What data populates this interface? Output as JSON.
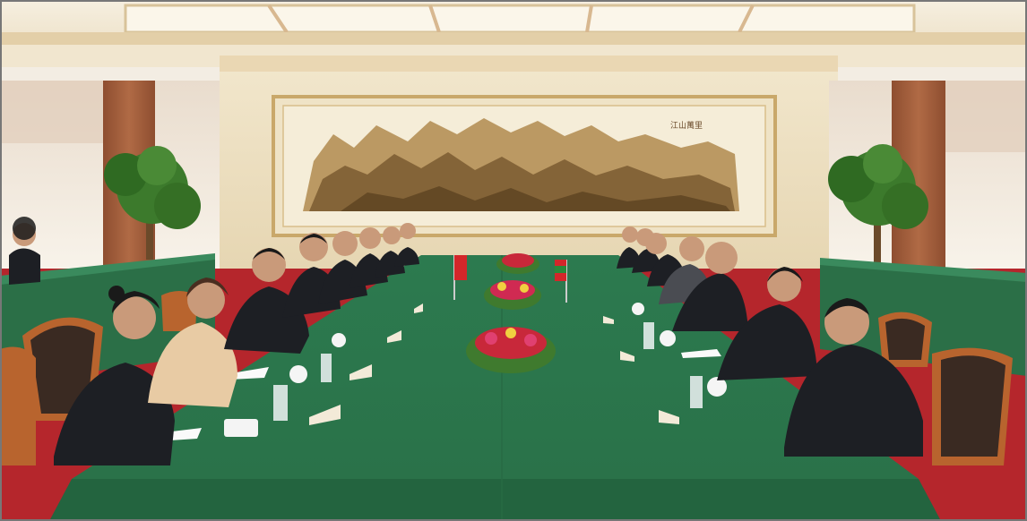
{
  "photo": {
    "subject": "",
    "painting_inscription": "江山萬里"
  },
  "palette": {
    "table_green": "#2f7d52",
    "table_green_dark": "#23643f",
    "wall_cream": "#efe4c9",
    "ceiling": "#f3ead8",
    "curtain": "#9c5a3a",
    "carpet_red": "#b5262c",
    "chair_wood": "#b8642e",
    "suit_dark": "#1d1f24",
    "skin": "#c99a7a",
    "flower_red": "#c8283a",
    "painting_ink": "#8a6a3a",
    "frame_gold": "#c9a86a"
  }
}
